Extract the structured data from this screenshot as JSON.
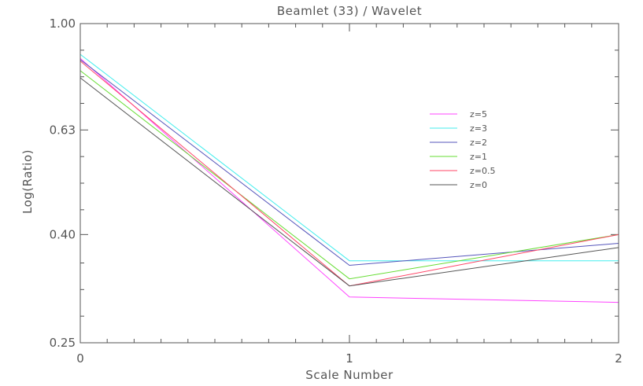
{
  "chart_data": {
    "type": "line",
    "title": "Beamlet (33) / Wavelet",
    "xlabel": "Scale Number",
    "ylabel": "Log(Ratio)",
    "x": [
      0,
      1,
      2
    ],
    "xlim": [
      0,
      2
    ],
    "ylim": [
      0.25,
      1.0
    ],
    "y_scale": "log",
    "x_ticks": [
      {
        "value": 0,
        "label": "0"
      },
      {
        "value": 1,
        "label": "1"
      },
      {
        "value": 2,
        "label": "2"
      }
    ],
    "y_ticks": [
      {
        "value": 1.0,
        "label": "1.00"
      },
      {
        "value": 0.63,
        "label": "0.63"
      },
      {
        "value": 0.4,
        "label": "0.40"
      },
      {
        "value": 0.25,
        "label": "0.25"
      }
    ],
    "grid": false,
    "legend": "inside-right",
    "series": [
      {
        "name": "z=5",
        "color": "#ff44ff",
        "values": [
          0.86,
          0.305,
          0.298
        ]
      },
      {
        "name": "z=3",
        "color": "#44eeee",
        "values": [
          0.875,
          0.357,
          0.357
        ]
      },
      {
        "name": "z=2",
        "color": "#5555bb",
        "values": [
          0.855,
          0.35,
          0.385
        ]
      },
      {
        "name": "z=1",
        "color": "#66dd33",
        "values": [
          0.815,
          0.33,
          0.4
        ]
      },
      {
        "name": "z=0.5",
        "color": "#ff4466",
        "values": [
          0.85,
          0.32,
          0.4
        ]
      },
      {
        "name": "z=0",
        "color": "#555555",
        "values": [
          0.79,
          0.32,
          0.378
        ]
      }
    ]
  }
}
